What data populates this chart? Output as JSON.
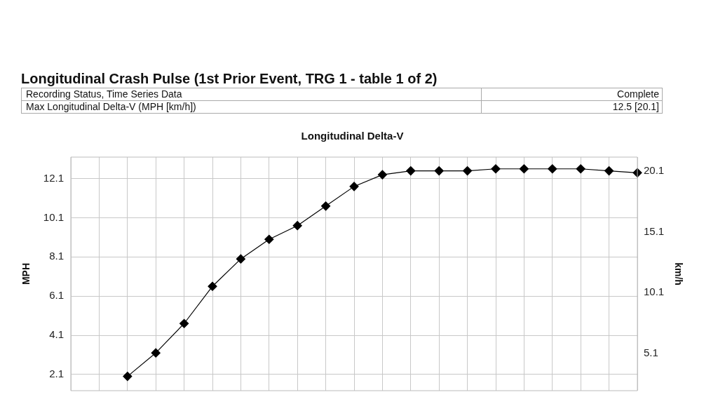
{
  "chart_data": {
    "type": "line",
    "title": "Longitudinal Crash Pulse (1st Prior Event, TRG 1 - table 1 of 2)",
    "subtitle": "Longitudinal Delta-V",
    "annotations": [
      "Recording Status, Time Series Data",
      "Complete",
      "Max Longitudinal Delta-V (MPH [km/h])",
      "12.5 [20.1]"
    ],
    "ylabel": "MPH",
    "y2label": "km/h",
    "categories": [
      null,
      null,
      null,
      null,
      null,
      null,
      null,
      null,
      null,
      null,
      null,
      null,
      null,
      null,
      null,
      null,
      null,
      null,
      null,
      null,
      null
    ],
    "series": [
      {
        "color": "#000000",
        "values": [
          null,
          null,
          2.0,
          3.2,
          4.7,
          6.6,
          8.0,
          9.0,
          9.7,
          10.7,
          11.7,
          12.3,
          12.5,
          12.5,
          12.5,
          12.6,
          12.6,
          12.6,
          12.6,
          12.5,
          12.4
        ]
      }
    ],
    "ylim": [
      1.27,
      13.2
    ],
    "yticks": [
      2.1,
      4.1,
      6.1,
      8.1,
      10.1,
      12.1
    ],
    "y2lim": [
      2.04,
      21.24
    ],
    "y2ticks": [
      5.1,
      10.1,
      15.1,
      20.1
    ],
    "grid": true,
    "marker": "diamond",
    "line_style": "solid"
  }
}
